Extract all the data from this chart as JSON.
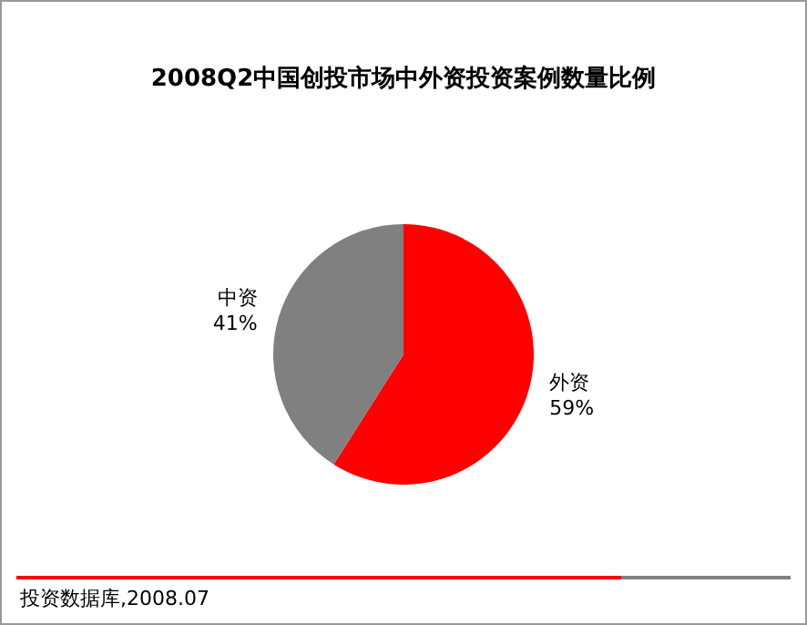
{
  "chart_data": {
    "type": "pie",
    "title": "2008Q2中国创投市场中外资投资案例数量比例",
    "categories": [
      "外资",
      "中资"
    ],
    "values": [
      59,
      41
    ],
    "value_labels": [
      "59%",
      "41%"
    ],
    "colors": [
      "#ff0000",
      "#808080"
    ],
    "legend": false,
    "annotations": [
      "投资数据库,2008.07"
    ]
  }
}
